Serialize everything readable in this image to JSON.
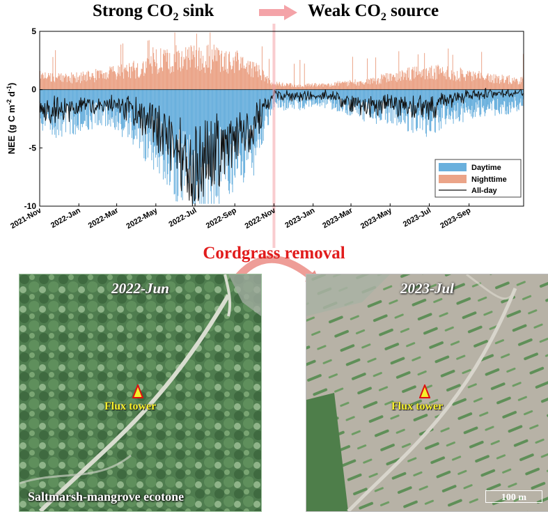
{
  "header": {
    "left": {
      "pre": "Strong CO",
      "sub": "2",
      "post": " sink"
    },
    "right": {
      "pre": "Weak CO",
      "sub": "2",
      "post": " source"
    }
  },
  "event_label": "Cordgrass removal",
  "photos": {
    "left": {
      "date": "2022-Jun",
      "tower_label": "Flux tower",
      "caption": "Saltmarsh-mangrove  ecotone"
    },
    "right": {
      "date": "2023-Jul",
      "tower_label": "Flux tower",
      "scale_bar": "100 m"
    }
  },
  "colors": {
    "daytime": "#6ab0dd",
    "nighttime": "#eba488",
    "allday": "#111111",
    "accent_red": "#e11c1c",
    "transition_arrow": "#f4a3a8",
    "tower_fill": "#f5ef2a"
  },
  "chart_data": {
    "type": "area",
    "x_axis": "date",
    "xlim": [
      "2021-11-01",
      "2023-11-25"
    ],
    "ylim": [
      -10,
      5
    ],
    "yticks": [
      -10,
      -5,
      0,
      5
    ],
    "ylabel": {
      "main": "NEE (g C m",
      "sup1": "-2",
      "mid": " d",
      "sup2": "-1",
      "end": ")"
    },
    "xtick_labels": [
      "2021-Nov",
      "2022-Jan",
      "2022-Mar",
      "2022-May",
      "2022-Jul",
      "2022-Sep",
      "2022-Nov",
      "2023-Jan",
      "2023-Mar",
      "2023-May",
      "2023-Jul",
      "2023-Sep"
    ],
    "xtick_dates": [
      "2021-11-01",
      "2022-01-01",
      "2022-03-01",
      "2022-05-01",
      "2022-07-01",
      "2022-09-01",
      "2022-11-01",
      "2023-01-01",
      "2023-03-01",
      "2023-05-01",
      "2023-07-01",
      "2023-09-01"
    ],
    "grid": false,
    "legend": {
      "position": "bottom-right",
      "entries": [
        "Daytime",
        "Nighttime",
        "All-day"
      ]
    },
    "event_date": "2022-11-01",
    "series": [
      {
        "name": "Daytime",
        "x": [
          "2021-11-01",
          "2021-12-01",
          "2022-01-01",
          "2022-02-01",
          "2022-03-01",
          "2022-04-01",
          "2022-05-01",
          "2022-06-01",
          "2022-07-01",
          "2022-08-01",
          "2022-09-01",
          "2022-10-01",
          "2022-11-01",
          "2022-12-01",
          "2023-01-01",
          "2023-02-01",
          "2023-03-01",
          "2023-04-01",
          "2023-05-01",
          "2023-06-01",
          "2023-07-01",
          "2023-08-01",
          "2023-09-01",
          "2023-10-01",
          "2023-11-01",
          "2023-11-25"
        ],
        "y": [
          -2.5,
          -3.0,
          -2.6,
          -2.3,
          -2.5,
          -3.8,
          -5.0,
          -6.8,
          -8.2,
          -7.2,
          -6.0,
          -5.2,
          -1.2,
          -1.4,
          -1.0,
          -1.2,
          -1.7,
          -2.2,
          -2.0,
          -2.6,
          -3.0,
          -2.2,
          -1.8,
          -1.6,
          -1.5,
          -1.2
        ]
      },
      {
        "name": "Nighttime",
        "x": [
          "2021-11-01",
          "2021-12-01",
          "2022-01-01",
          "2022-02-01",
          "2022-03-01",
          "2022-04-01",
          "2022-05-01",
          "2022-06-01",
          "2022-07-01",
          "2022-08-01",
          "2022-09-01",
          "2022-10-01",
          "2022-11-01",
          "2022-12-01",
          "2023-01-01",
          "2023-02-01",
          "2023-03-01",
          "2023-04-01",
          "2023-05-01",
          "2023-06-01",
          "2023-07-01",
          "2023-08-01",
          "2023-09-01",
          "2023-10-01",
          "2023-11-01",
          "2023-11-25"
        ],
        "y": [
          1.2,
          1.0,
          1.1,
          1.3,
          1.5,
          1.9,
          2.5,
          2.9,
          2.7,
          2.8,
          2.5,
          1.8,
          0.5,
          0.4,
          0.4,
          0.5,
          0.6,
          0.8,
          1.1,
          1.4,
          1.6,
          1.5,
          1.3,
          1.0,
          0.9,
          0.8
        ]
      },
      {
        "name": "All-day",
        "x": [
          "2021-11-01",
          "2021-12-01",
          "2022-01-01",
          "2022-02-01",
          "2022-03-01",
          "2022-04-01",
          "2022-05-01",
          "2022-06-01",
          "2022-07-01",
          "2022-08-01",
          "2022-09-01",
          "2022-10-01",
          "2022-11-01",
          "2022-12-01",
          "2023-01-01",
          "2023-02-01",
          "2023-03-01",
          "2023-04-01",
          "2023-05-01",
          "2023-06-01",
          "2023-07-01",
          "2023-08-01",
          "2023-09-01",
          "2023-10-01",
          "2023-11-01",
          "2023-11-25"
        ],
        "y": [
          -1.6,
          -2.0,
          -1.5,
          -1.3,
          -1.4,
          -2.2,
          -3.4,
          -5.2,
          -7.0,
          -5.8,
          -4.6,
          -3.4,
          -0.4,
          -0.6,
          -0.5,
          -0.6,
          -1.3,
          -1.6,
          -1.2,
          -1.6,
          -1.8,
          -1.0,
          -0.5,
          -0.4,
          -0.3,
          -0.2
        ]
      }
    ]
  }
}
